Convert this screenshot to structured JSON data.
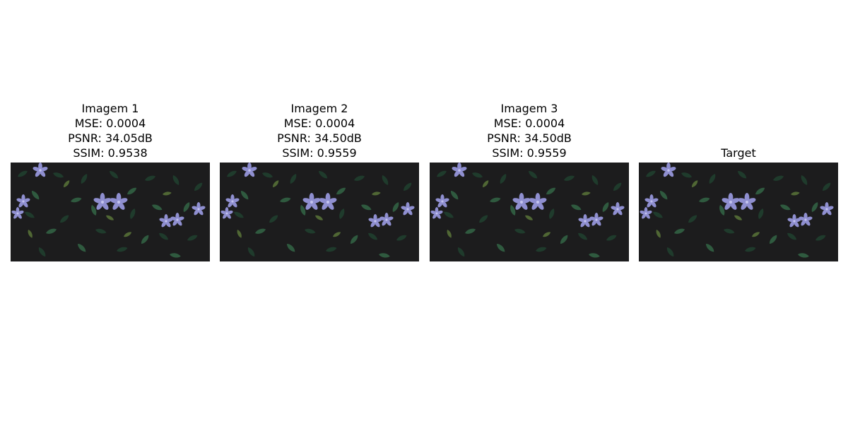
{
  "panels": [
    {
      "title": "Imagem 1",
      "mse": "MSE: 0.0004",
      "psnr": "PSNR: 34.05dB",
      "ssim": "SSIM: 0.9538"
    },
    {
      "title": "Imagem 2",
      "mse": "MSE: 0.0004",
      "psnr": "PSNR: 34.50dB",
      "ssim": "SSIM: 0.9559"
    },
    {
      "title": "Imagem 3",
      "mse": "MSE: 0.0004",
      "psnr": "PSNR: 34.50dB",
      "ssim": "SSIM: 0.9559"
    },
    {
      "title": "Target"
    }
  ],
  "image": {
    "description_icon": "flower-foliage-photo",
    "colors": {
      "background": "#1c1c1d",
      "leaf_dark": "#1f3b2c",
      "leaf_mid": "#2f5a3f",
      "leaf_light": "#5d7a3a",
      "flower": "#8f8fd0",
      "flower_light": "#c3c3ee"
    }
  }
}
